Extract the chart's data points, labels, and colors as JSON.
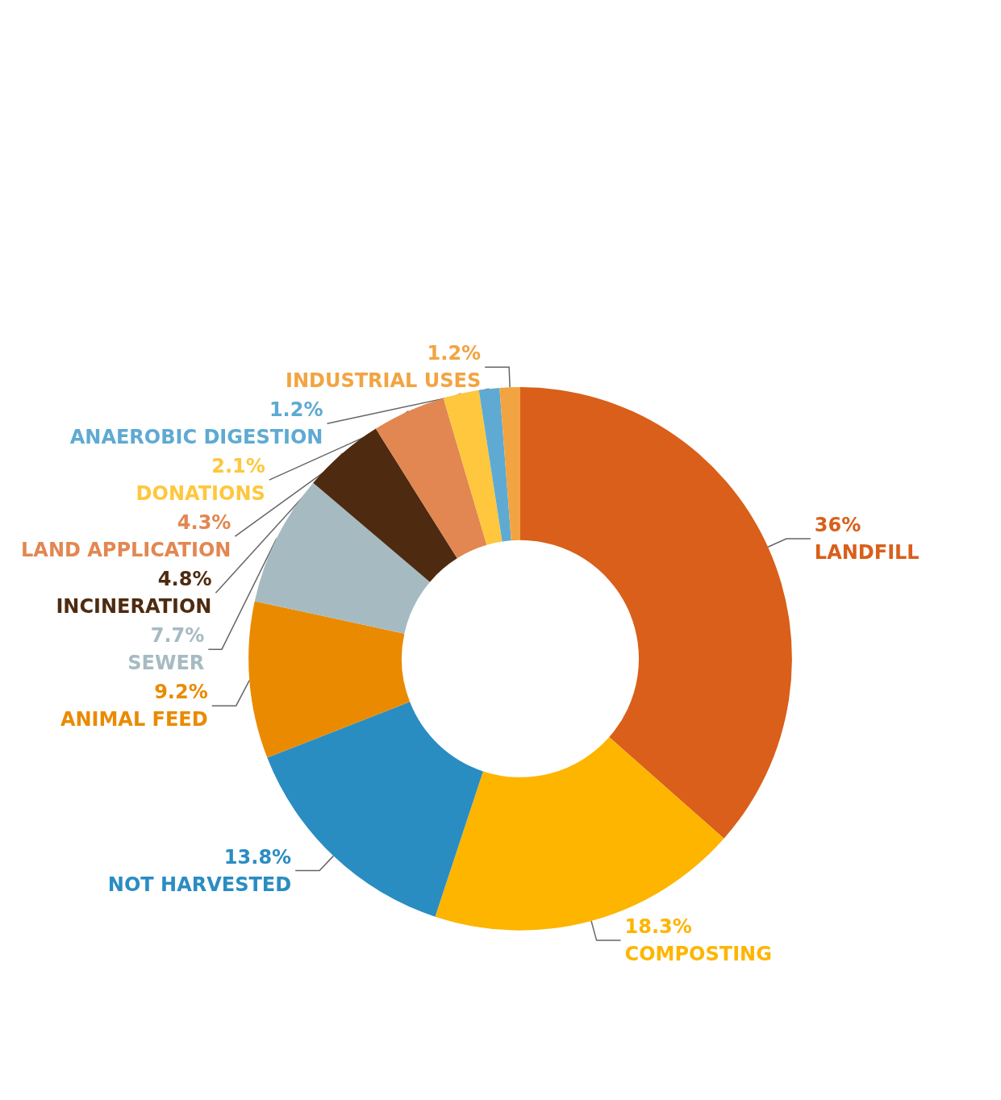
{
  "chart_data": {
    "type": "donut",
    "categories": [
      "LANDFILL",
      "COMPOSTING",
      "NOT HARVESTED",
      "ANIMAL FEED",
      "SEWER",
      "INCINERATION",
      "LAND APPLICATION",
      "DONATIONS",
      "ANAEROBIC DIGESTION",
      "INDUSTRIAL USES"
    ],
    "values": [
      36,
      18.3,
      13.8,
      9.2,
      7.7,
      4.8,
      4.3,
      2.1,
      1.2,
      1.2
    ],
    "colors": [
      "#d95f1a",
      "#fdb500",
      "#2a8dc2",
      "#ea8a00",
      "#a6bbc1",
      "#4e2b10",
      "#e28752",
      "#fec73d",
      "#5eaad2",
      "#f2a442"
    ],
    "value_labels": [
      "36%",
      "18.3%",
      "13.8%",
      "9.2%",
      "7.7%",
      "4.8%",
      "4.3%",
      "2.1%",
      "1.2%",
      "1.2%"
    ],
    "legend": false
  }
}
